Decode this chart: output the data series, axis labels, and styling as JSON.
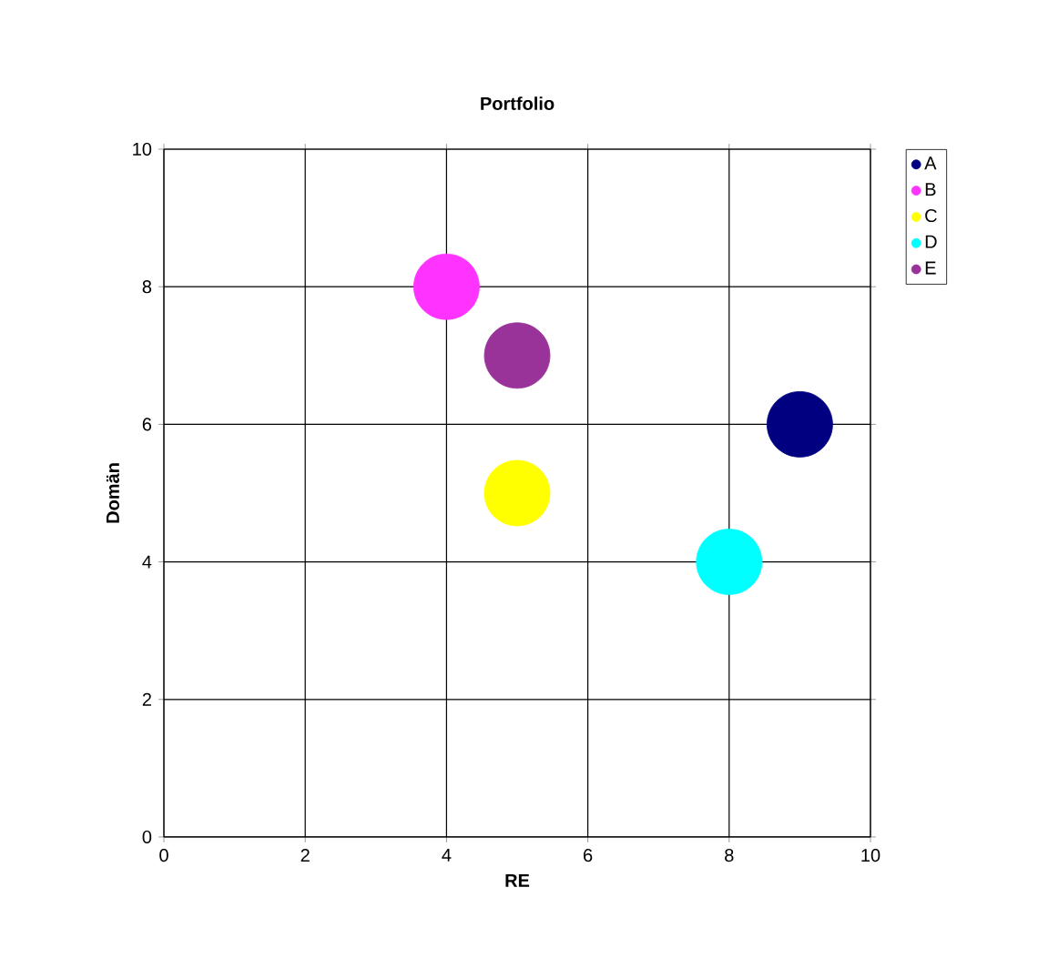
{
  "chart_data": {
    "type": "bubble",
    "title": "Portfolio",
    "xlabel": "RE",
    "ylabel": "Domän",
    "xlim": [
      0,
      10
    ],
    "ylim": [
      0,
      10
    ],
    "xticks": [
      0,
      2,
      4,
      6,
      8,
      10
    ],
    "yticks": [
      0,
      2,
      4,
      6,
      8,
      10
    ],
    "grid": true,
    "legend": "right",
    "series": [
      {
        "name": "A",
        "color": "#000080",
        "x": [
          9
        ],
        "values": [
          6
        ],
        "sizes": [
          1
        ]
      },
      {
        "name": "B",
        "color": "#ff33ff",
        "x": [
          4
        ],
        "values": [
          8
        ],
        "sizes": [
          1
        ]
      },
      {
        "name": "C",
        "color": "#ffff00",
        "x": [
          5
        ],
        "values": [
          5
        ],
        "sizes": [
          1
        ]
      },
      {
        "name": "D",
        "color": "#00ffff",
        "x": [
          8
        ],
        "values": [
          4
        ],
        "sizes": [
          1
        ]
      },
      {
        "name": "E",
        "color": "#993399",
        "x": [
          5
        ],
        "values": [
          7
        ],
        "sizes": [
          1
        ]
      }
    ]
  }
}
